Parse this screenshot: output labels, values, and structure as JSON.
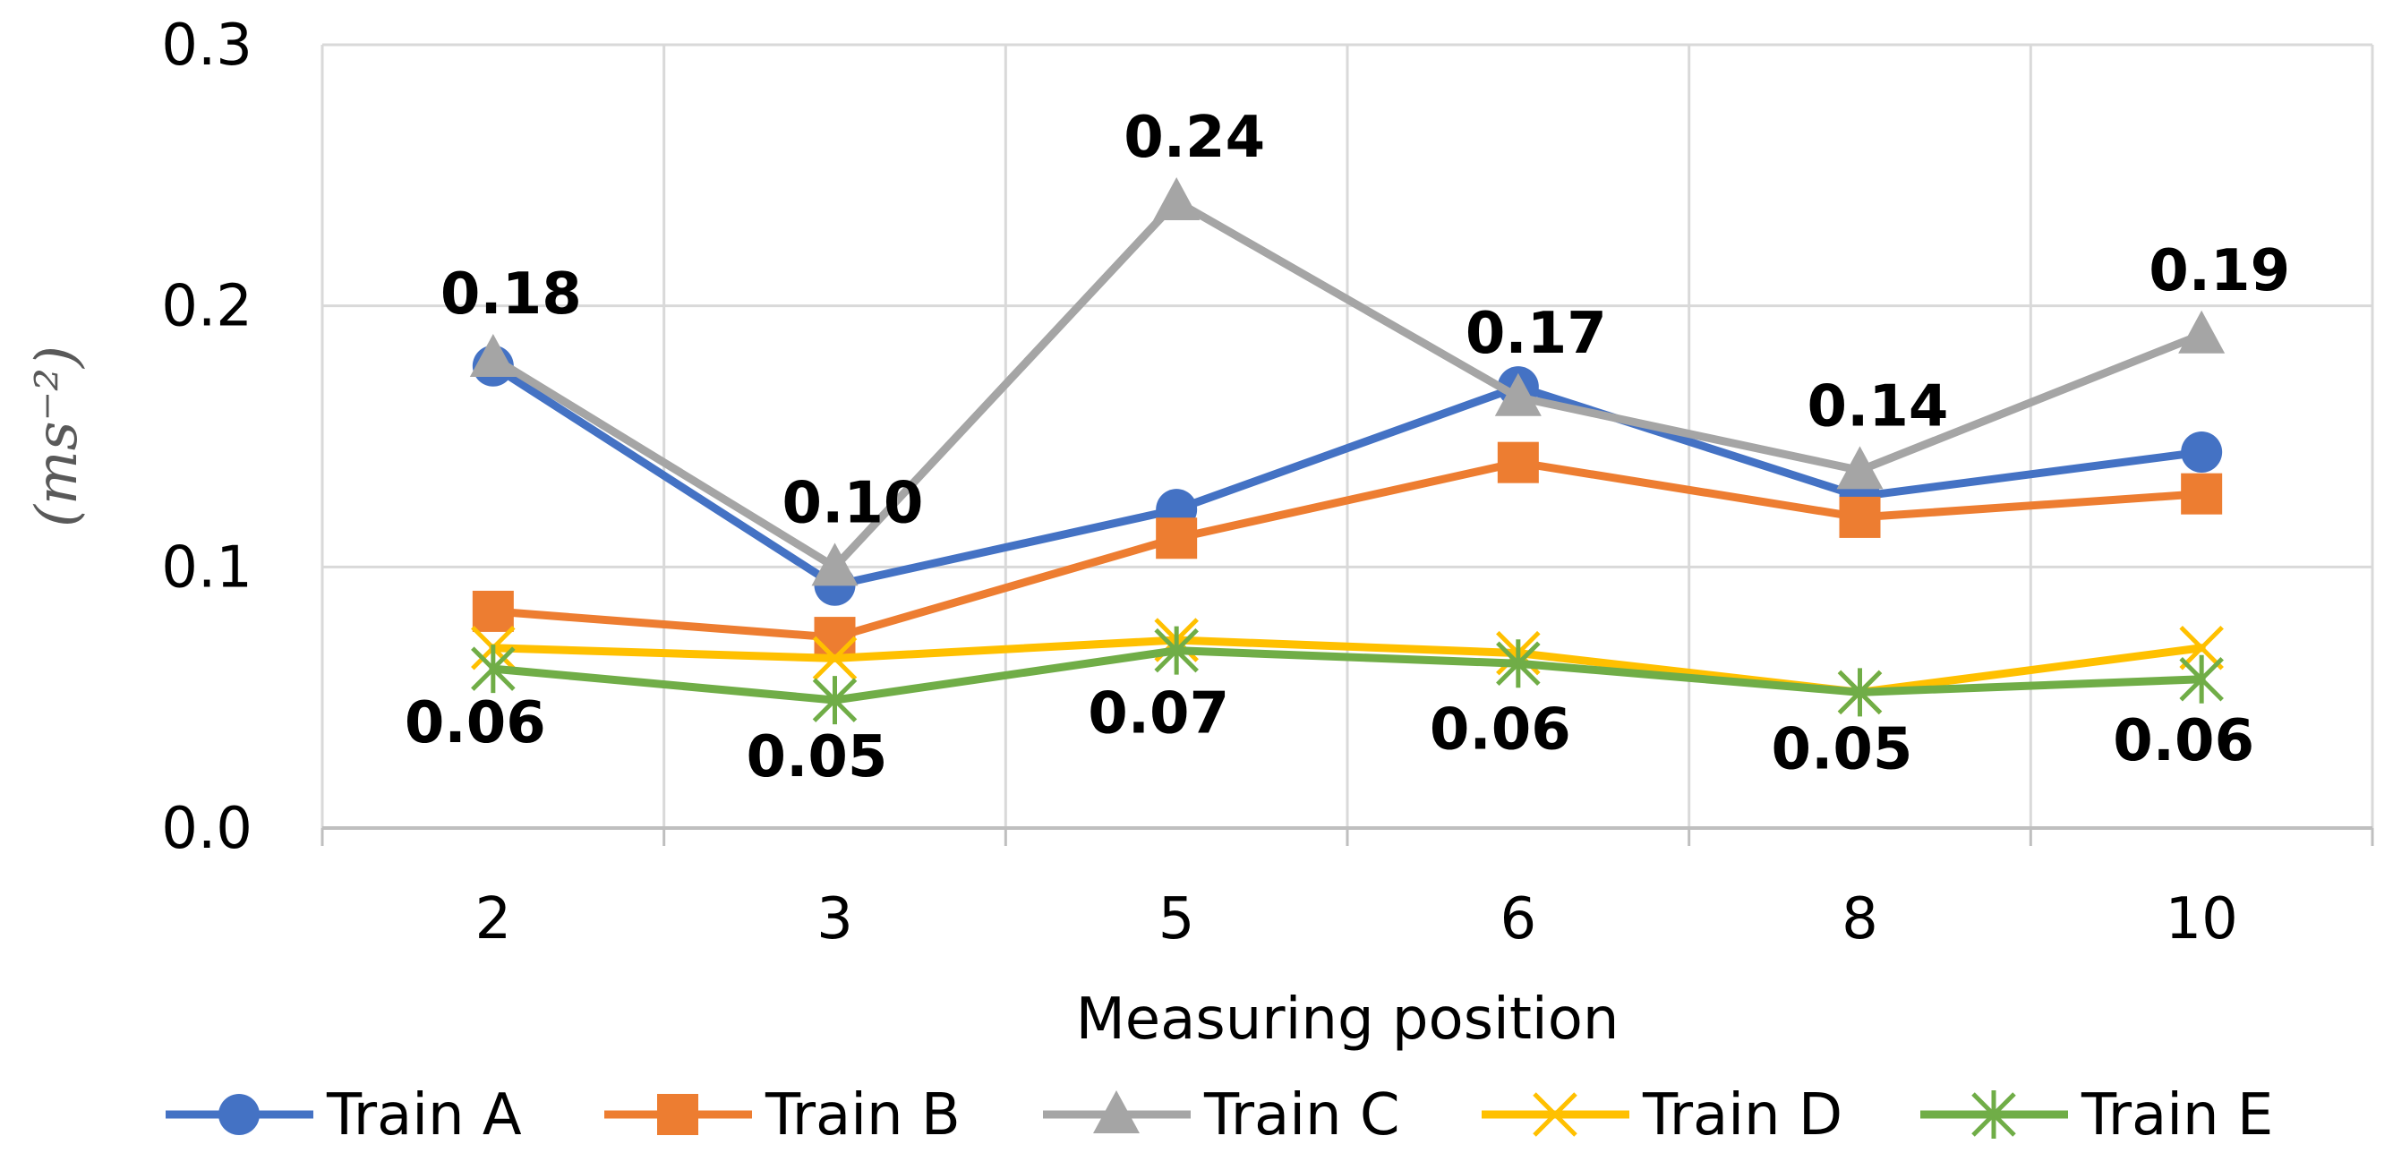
{
  "chart_data": {
    "type": "line",
    "title": "",
    "xlabel": "Measuring position",
    "ylabel": "(ms⁻²)",
    "categories": [
      "2",
      "3",
      "5",
      "6",
      "8",
      "10"
    ],
    "ylim": [
      0,
      0.3
    ],
    "yticks": [
      "0.0",
      "0.1",
      "0.2",
      "0.3"
    ],
    "grid": true,
    "legend_position": "bottom",
    "series": [
      {
        "name": "Train A",
        "color": "#4472C4",
        "marker": "circle",
        "values": [
          0.177,
          0.093,
          0.122,
          0.169,
          0.127,
          0.144
        ]
      },
      {
        "name": "Train B",
        "color": "#ED7D31",
        "marker": "square",
        "values": [
          0.083,
          0.073,
          0.111,
          0.14,
          0.119,
          0.128
        ]
      },
      {
        "name": "Train C",
        "color": "#A5A5A5",
        "marker": "triangle",
        "values": [
          0.18,
          0.1,
          0.24,
          0.165,
          0.137,
          0.189
        ]
      },
      {
        "name": "Train D",
        "color": "#FFC000",
        "marker": "x",
        "values": [
          0.069,
          0.065,
          0.072,
          0.067,
          0.052,
          0.069
        ]
      },
      {
        "name": "Train E",
        "color": "#70AD47",
        "marker": "star",
        "values": [
          0.061,
          0.049,
          0.068,
          0.063,
          0.052,
          0.057
        ]
      }
    ],
    "data_labels": {
      "above": {
        "series": "Train C",
        "labels": [
          "0.18",
          "0.10",
          "0.24",
          "0.17",
          "0.14",
          "0.19"
        ]
      },
      "below": {
        "series": "Train E",
        "labels": [
          "0.06",
          "0.05",
          "0.07",
          "0.06",
          "0.05",
          "0.06"
        ]
      }
    }
  }
}
